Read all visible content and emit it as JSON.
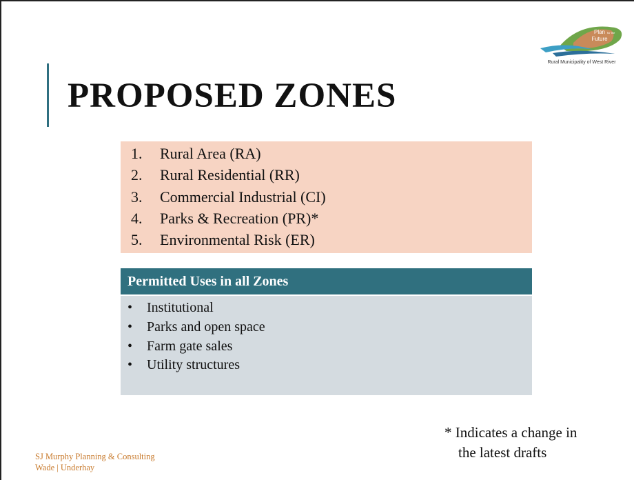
{
  "logo": {
    "lines": [
      "Plan",
      "for the",
      "Future"
    ],
    "caption": "Rural Municipality of West River"
  },
  "title": "PROPOSED ZONES",
  "zones": {
    "numbers": [
      "1.",
      "2.",
      "3.",
      "4.",
      "5."
    ],
    "items": [
      "Rural Area (RA)",
      "Rural Residential (RR)",
      "Commercial Industrial (CI)",
      "Parks & Recreation (PR)*",
      "Environmental Risk (ER)"
    ]
  },
  "permitted": {
    "header": "Permitted Uses in all Zones",
    "bullet": "•",
    "items": [
      "Institutional",
      "Parks and open space",
      "Farm gate sales",
      "Utility structures"
    ]
  },
  "footnote": [
    "* Indicates a change in",
    "the latest drafts"
  ],
  "footer": [
    "SJ Murphy Planning & Consulting",
    "Wade | Underhay"
  ]
}
